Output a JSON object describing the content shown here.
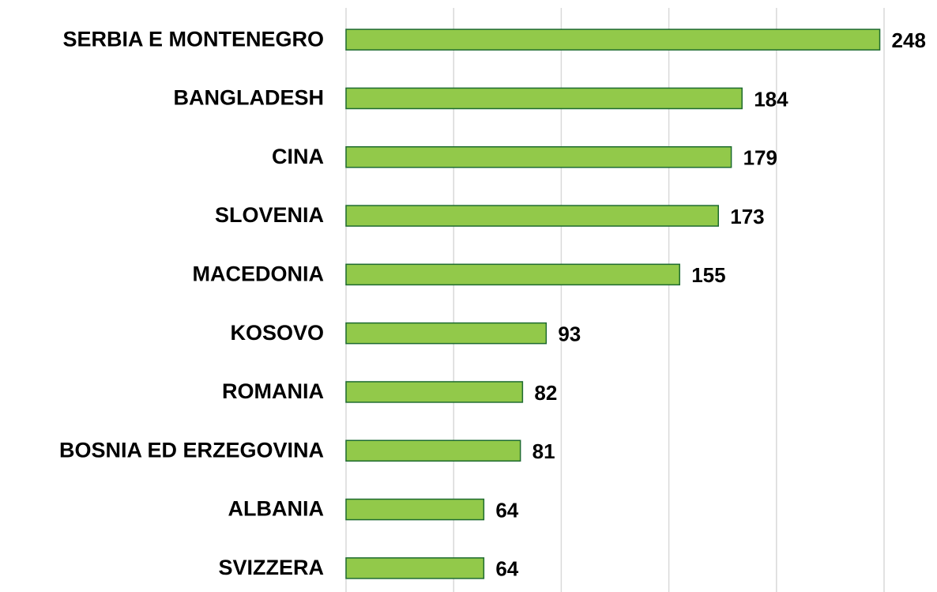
{
  "chart_data": {
    "type": "barh",
    "categories": [
      "SERBIA E MONTENEGRO",
      "BANGLADESH",
      "CINA",
      "SLOVENIA",
      "MACEDONIA",
      "KOSOVO",
      "ROMANIA",
      "BOSNIA ED ERZEGOVINA",
      "ALBANIA",
      "SVIZZERA"
    ],
    "values": [
      248,
      184,
      179,
      173,
      155,
      93,
      82,
      81,
      64,
      64
    ],
    "color": "#92c94a",
    "edgecolor": "#1e6b30",
    "xlim": [
      0,
      250
    ],
    "xticks": [
      0,
      50,
      100,
      150,
      200,
      250
    ],
    "grid": true
  }
}
